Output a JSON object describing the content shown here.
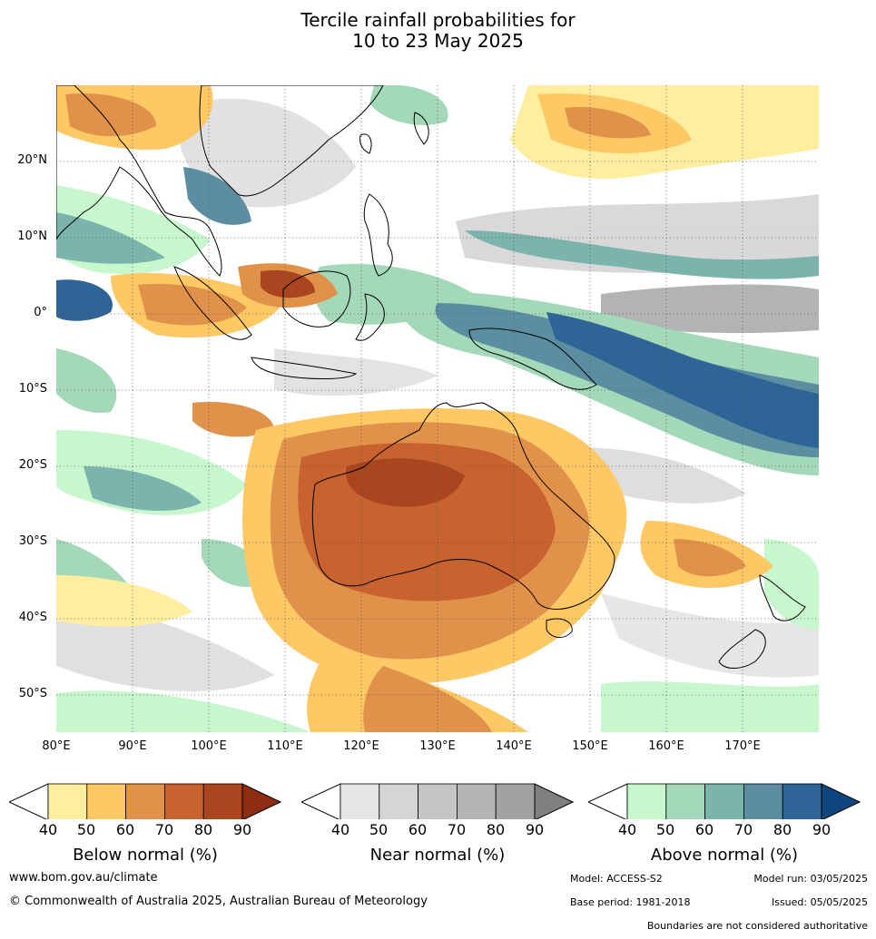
{
  "title": {
    "line1": "Tercile rainfall probabilities for",
    "line2": "10 to 23 May 2025"
  },
  "map": {
    "lat_labels": [
      "20°N",
      "10°N",
      "0°",
      "10°S",
      "20°S",
      "30°S",
      "40°S",
      "50°S"
    ],
    "lon_labels": [
      "80°E",
      "90°E",
      "100°E",
      "110°E",
      "120°E",
      "130°E",
      "140°E",
      "150°E",
      "160°E",
      "170°E"
    ],
    "extent": {
      "lon": [
        80,
        180
      ],
      "lat": [
        -55,
        30
      ]
    }
  },
  "colorbars": {
    "below": {
      "title": "Below normal (%)",
      "ticks": [
        "40",
        "50",
        "60",
        "70",
        "80",
        "90"
      ],
      "colors": [
        "#ffffff",
        "#ffeda0",
        "#fec965",
        "#e0924a",
        "#c8622f",
        "#a9461f",
        "#8c2d14"
      ]
    },
    "near": {
      "title": "Near normal (%)",
      "ticks": [
        "40",
        "50",
        "60",
        "70",
        "80",
        "90"
      ],
      "colors": [
        "#ffffff",
        "#e5e5e5",
        "#d5d5d5",
        "#c5c5c5",
        "#b5b5b5",
        "#a2a2a2",
        "#808080"
      ]
    },
    "above": {
      "title": "Above normal (%)",
      "ticks": [
        "40",
        "50",
        "60",
        "70",
        "80",
        "90"
      ],
      "colors": [
        "#ffffff",
        "#c7f7cc",
        "#a3d8b8",
        "#7bb3ad",
        "#5a8ea0",
        "#2f6596",
        "#10467f"
      ]
    }
  },
  "footer": {
    "website": "www.bom.gov.au/climate",
    "copyright": "© Commonwealth of Australia 2025, Australian Bureau of Meteorology",
    "model": "Model: ACCESS-S2",
    "model_run": "Model run: 03/05/2025",
    "base_period": "Base period: 1981-2018",
    "issued": "Issued: 05/05/2025",
    "boundaries_note": "Boundaries are not considered authoritative"
  }
}
